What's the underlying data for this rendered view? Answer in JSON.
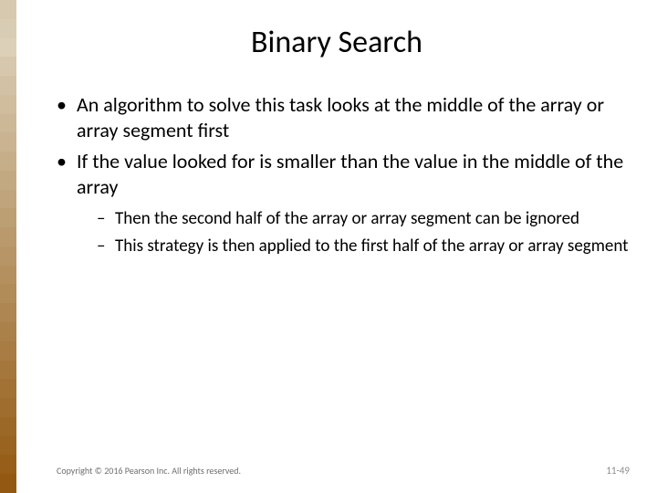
{
  "stripe_colors": [
    "#d7c9b0",
    "#d9ccb4",
    "#dcd0b9",
    "#d7c7ad",
    "#d2c1a4",
    "#cfbd9e",
    "#ccb897",
    "#c9b390",
    "#c6ae89",
    "#c3a982",
    "#c0a47b",
    "#bd9f74",
    "#ba9a6d",
    "#b79566",
    "#b4905f",
    "#b18b58",
    "#ae8651",
    "#ab814a",
    "#a87c43",
    "#a5773c",
    "#a27235",
    "#9f6d2e",
    "#9c6827",
    "#996320",
    "#965e19",
    "#935912"
  ],
  "title": "Binary Search",
  "bullets": [
    {
      "text": "An algorithm to solve this task looks at the middle of the array or array segment first",
      "sub": []
    },
    {
      "text": "If the value looked for is smaller than the value in the middle of the array",
      "sub": [
        "Then the second half of the array or array segment can be ignored",
        "This strategy is then applied to the first half of the array or array segment"
      ]
    }
  ],
  "footer": {
    "copyright": "Copyright © 2016 Pearson Inc. All rights reserved.",
    "page": "11-49"
  }
}
